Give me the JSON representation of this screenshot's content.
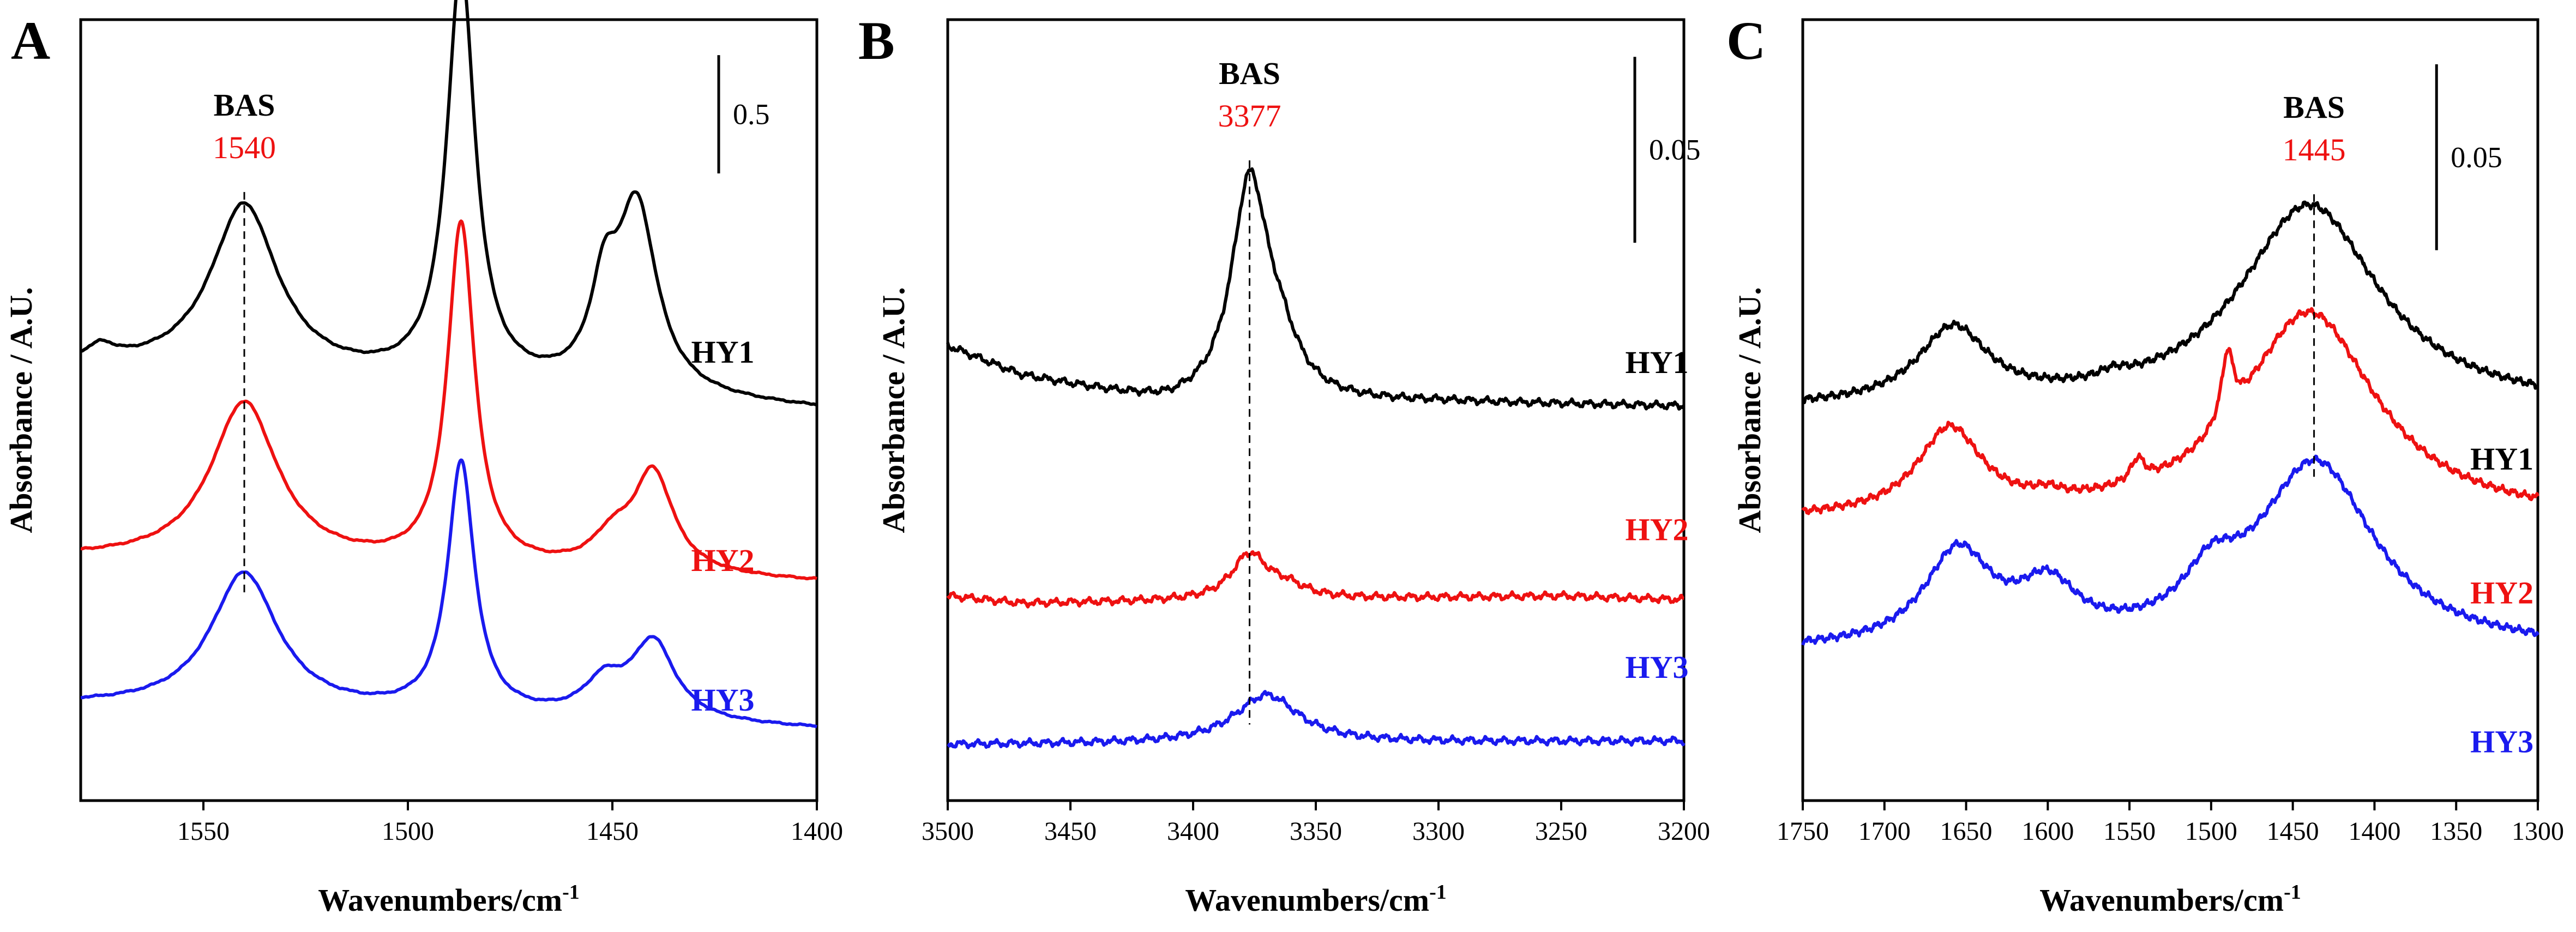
{
  "colors": {
    "HY1": "#000000",
    "HY2": "#ee1111",
    "HY3": "#1a1aee",
    "axis": "#000000"
  },
  "chart_data": [
    {
      "panel": "A",
      "type": "line",
      "xlabel": "Wavenumbers/cm",
      "xlabel_sup": "-1",
      "ylabel": "Absorbance / A.U.",
      "xlim": [
        1580,
        1400
      ],
      "x_ticks": [
        1550,
        1500,
        1450,
        1400
      ],
      "ylim": [
        -0.3,
        3.0
      ],
      "scale_bar": {
        "label": "0.5",
        "value": 0.5,
        "x": 1424,
        "y_top": 2.85
      },
      "annotations": [
        {
          "title": "BAS",
          "value": "1540",
          "x": 1540
        }
      ],
      "series": [
        {
          "name": "HY1",
          "color": "#000000",
          "label_x": 1423,
          "label_y": 1.55,
          "offset": 1.35,
          "baseline": [
            [
              1580,
              0.18
            ],
            [
              1400,
              0.0
            ]
          ],
          "peaks": [
            [
              1575,
              0.06,
              4
            ],
            [
              1540,
              0.72,
              10
            ],
            [
              1487,
              1.75,
              4.2
            ],
            [
              1452,
              0.35,
              4
            ],
            [
              1444,
              0.78,
              6
            ]
          ]
        },
        {
          "name": "HY2",
          "color": "#ee1111",
          "label_x": 1423,
          "label_y": 0.67,
          "offset": 0.62,
          "baseline": [
            [
              1580,
              0.1
            ],
            [
              1400,
              0.0
            ]
          ],
          "peaks": [
            [
              1540,
              0.68,
              10
            ],
            [
              1487,
              1.45,
              4
            ],
            [
              1450,
              0.12,
              6
            ],
            [
              1440,
              0.42,
              6
            ]
          ]
        },
        {
          "name": "HY3",
          "color": "#1a1aee",
          "label_x": 1423,
          "label_y": 0.08,
          "offset": 0.0,
          "baseline": [
            [
              1580,
              0.1
            ],
            [
              1400,
              0.0
            ]
          ],
          "peaks": [
            [
              1540,
              0.58,
              10
            ],
            [
              1487,
              1.06,
              4
            ],
            [
              1452,
              0.14,
              6
            ],
            [
              1440,
              0.33,
              6.5
            ]
          ]
        }
      ]
    },
    {
      "panel": "B",
      "type": "line",
      "xlabel": "Wavenumbers/cm",
      "xlabel_sup": "-1",
      "ylabel": "Absorbance / A.U.",
      "xlim": [
        3500,
        3200
      ],
      "x_ticks": [
        3500,
        3450,
        3400,
        3350,
        3300,
        3250,
        3200
      ],
      "ylim": [
        -0.015,
        0.195
      ],
      "scale_bar": {
        "label": "0.05",
        "value": 0.05,
        "x": 3220,
        "y_top": 0.185
      },
      "annotations": [
        {
          "title": "BAS",
          "value": "3377",
          "x": 3377
        }
      ],
      "series": [
        {
          "name": "HY1",
          "color": "#000000",
          "label_x": 3211,
          "label_y": 0.1,
          "offset": 0.091,
          "baseline": [
            [
              3500,
              0.016
            ],
            [
              3470,
              0.008
            ],
            [
              3440,
              0.004
            ],
            [
              3410,
              0.0
            ],
            [
              3300,
              0.001
            ],
            [
              3200,
              0.0
            ]
          ],
          "peaks": [
            [
              3377,
              0.058,
              9
            ],
            [
              3365,
              0.012,
              10
            ]
          ]
        },
        {
          "name": "HY2",
          "color": "#ee1111",
          "label_x": 3211,
          "label_y": 0.055,
          "offset": 0.038,
          "baseline": [
            [
              3500,
              0.002
            ],
            [
              3470,
              0.0
            ],
            [
              3250,
              0.002
            ],
            [
              3200,
              0.001
            ]
          ],
          "peaks": [
            [
              3377,
              0.012,
              9
            ],
            [
              3362,
              0.003,
              10
            ]
          ]
        },
        {
          "name": "HY3",
          "color": "#1a1aee",
          "label_x": 3211,
          "label_y": 0.018,
          "offset": 0.0,
          "baseline": [
            [
              3500,
              0.0
            ],
            [
              3200,
              0.001
            ]
          ],
          "peaks": [
            [
              3370,
              0.013,
              16
            ]
          ]
        }
      ]
    },
    {
      "panel": "C",
      "type": "line",
      "xlabel": "Wavenumbers/cm",
      "xlabel_sup": "-1",
      "ylabel": "Absorbance / A.U.",
      "xlim": [
        1750,
        1300
      ],
      "x_ticks": [
        1750,
        1700,
        1650,
        1600,
        1550,
        1500,
        1450,
        1400,
        1350,
        1300
      ],
      "ylim": [
        -0.04,
        0.17
      ],
      "scale_bar": {
        "label": "0.05",
        "value": 0.05,
        "x": 1362,
        "y_top": 0.158
      },
      "annotations": [
        {
          "title": "BAS",
          "value": "1445",
          "x": 1437
        }
      ],
      "series": [
        {
          "name": "HY1",
          "color": "#000000",
          "label_x": 1322,
          "label_y": 0.049,
          "offset": 0.065,
          "baseline": [
            [
              1750,
              0.0
            ],
            [
              1300,
              0.0
            ]
          ],
          "peaks": [
            [
              1658,
              0.02,
              26
            ],
            [
              1440,
              0.055,
              52
            ],
            [
              1560,
              0.002,
              10
            ]
          ]
        },
        {
          "name": "HY2",
          "color": "#ee1111",
          "label_x": 1322,
          "label_y": 0.013,
          "offset": 0.035,
          "baseline": [
            [
              1750,
              0.0
            ],
            [
              1300,
              0.0
            ]
          ],
          "peaks": [
            [
              1660,
              0.023,
              24
            ],
            [
              1600,
              0.002,
              10
            ],
            [
              1545,
              0.006,
              5
            ],
            [
              1490,
              0.018,
              4.5
            ],
            [
              1440,
              0.056,
              50
            ]
          ]
        },
        {
          "name": "HY3",
          "color": "#1a1aee",
          "label_x": 1322,
          "label_y": -0.027,
          "offset": 0.0,
          "baseline": [
            [
              1750,
              0.0
            ],
            [
              1300,
              0.0
            ]
          ],
          "peaks": [
            [
              1655,
              0.025,
              25
            ],
            [
              1600,
              0.014,
              22
            ],
            [
              1500,
              0.012,
              20
            ],
            [
              1436,
              0.05,
              44
            ]
          ]
        }
      ]
    }
  ]
}
